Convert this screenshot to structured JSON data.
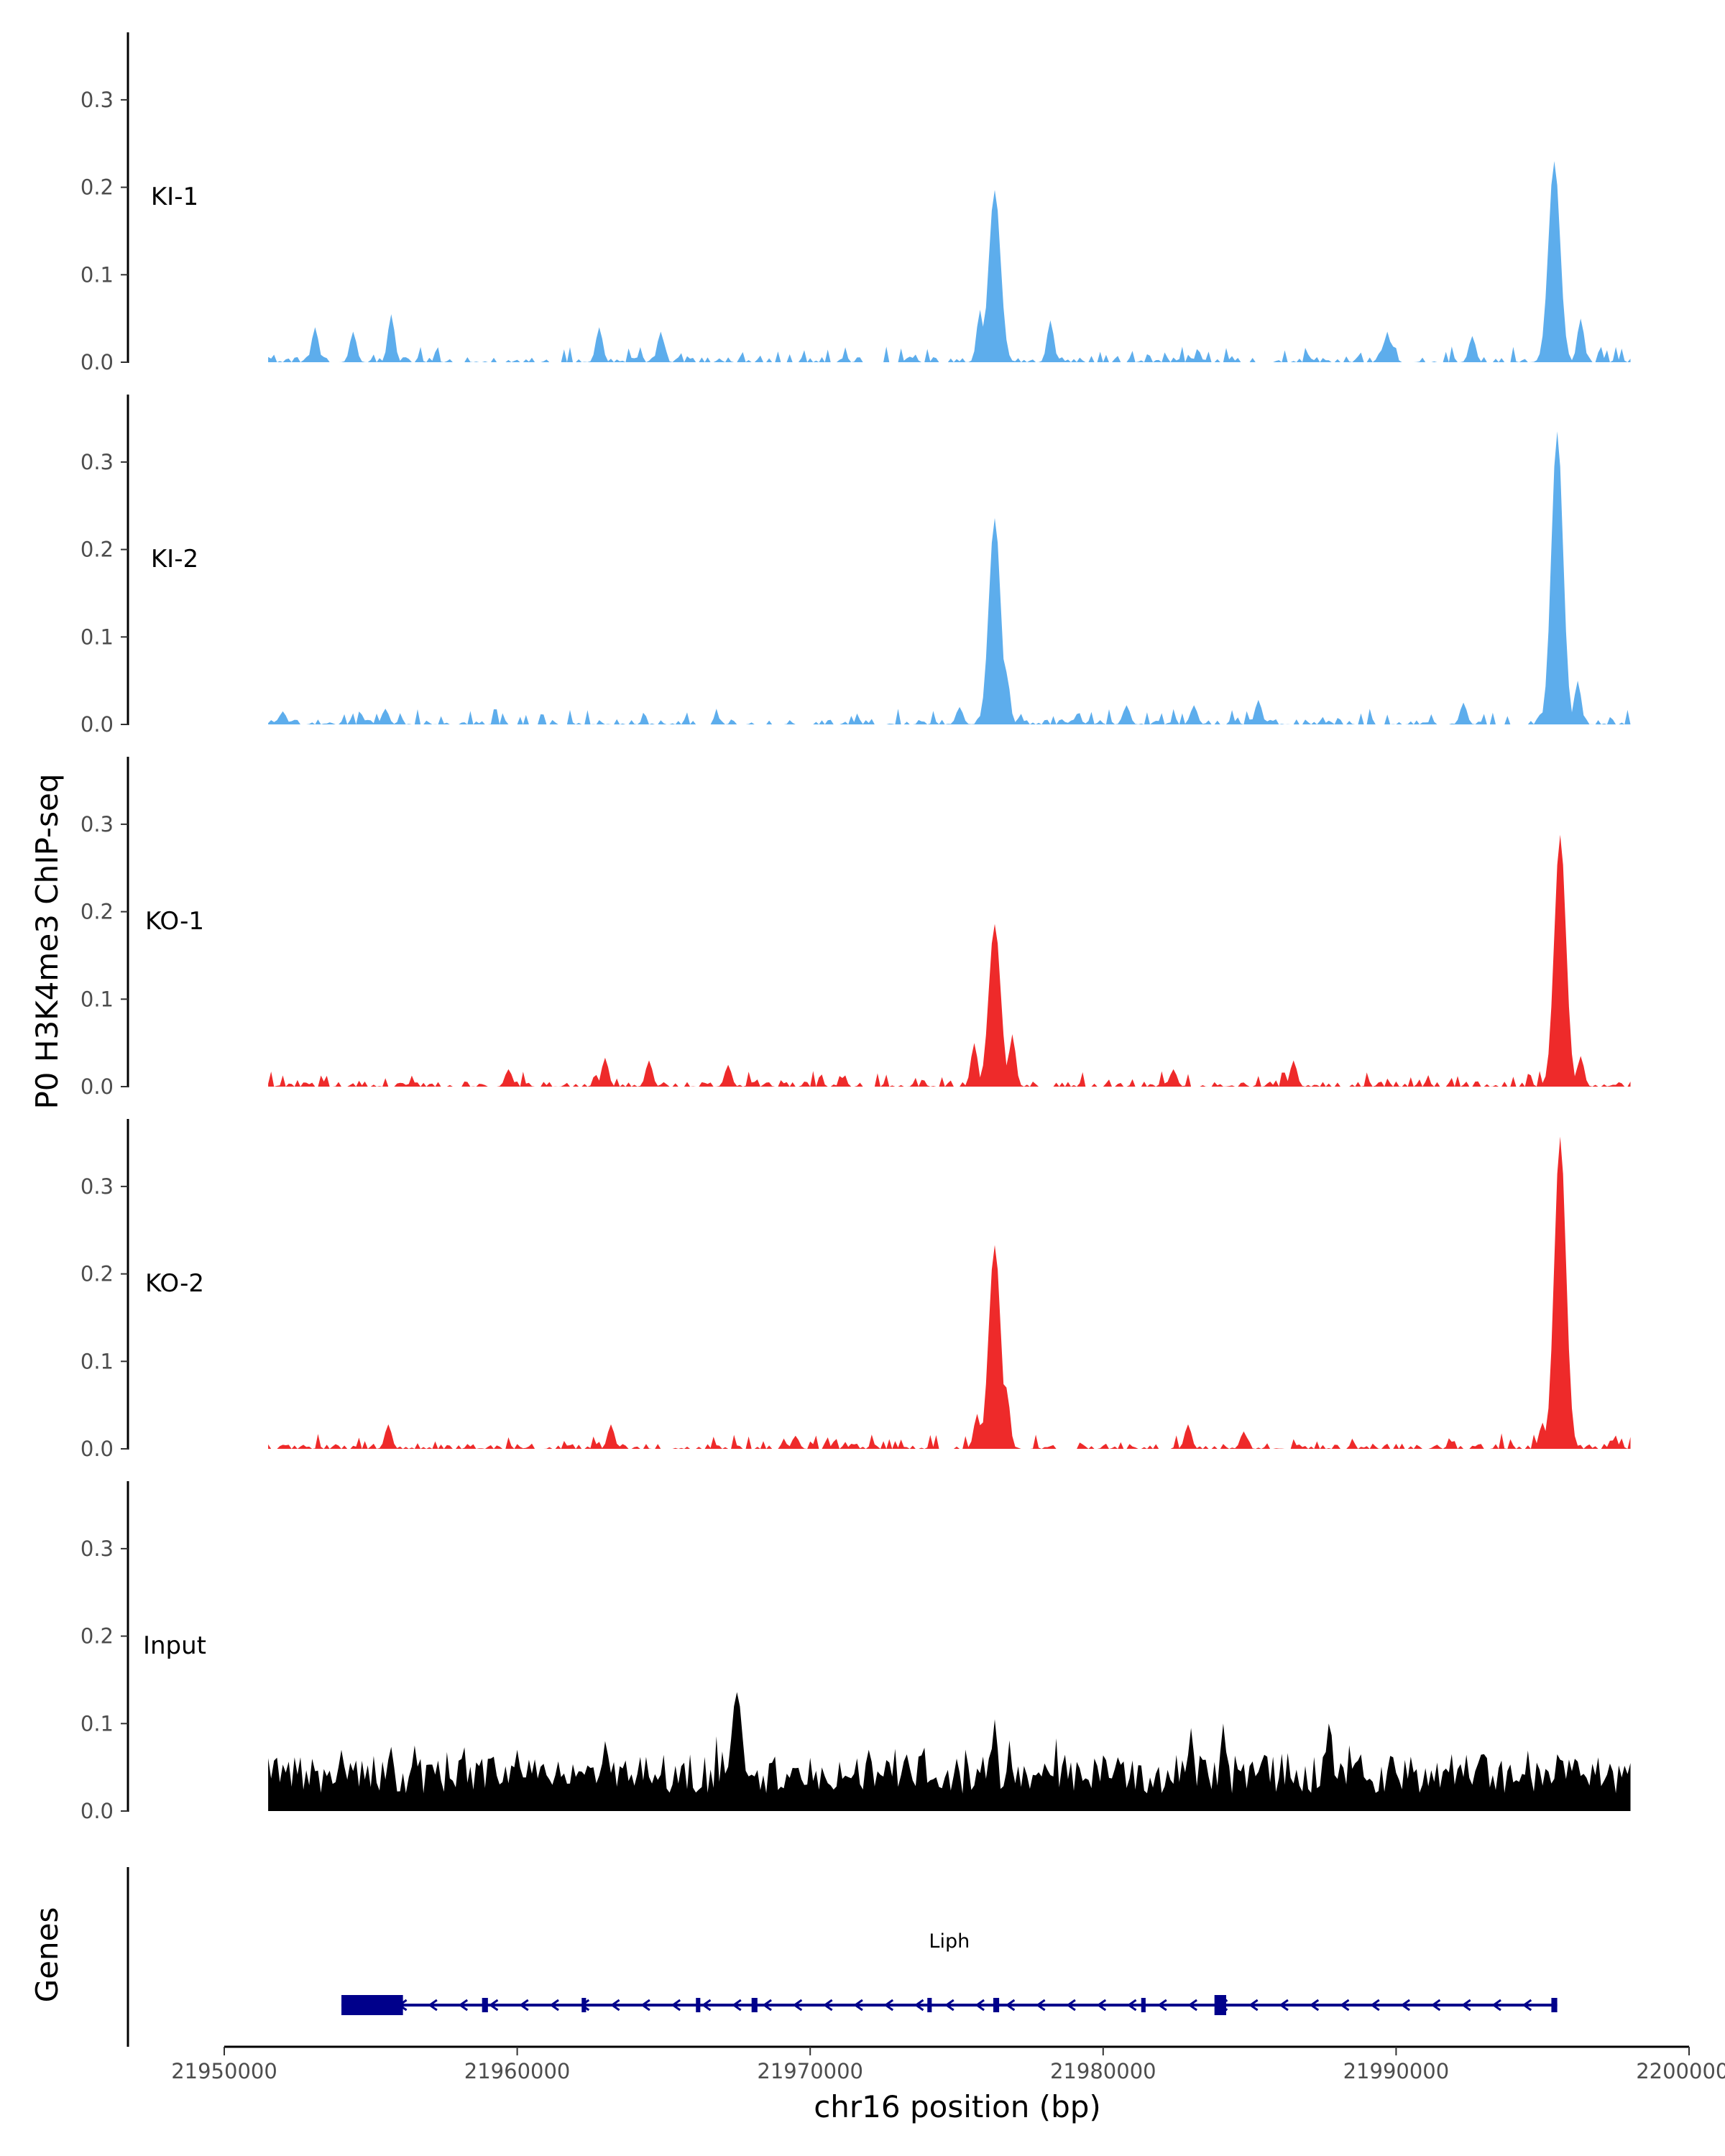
{
  "chart_data": {
    "type": "area",
    "ylabel": "P0 H3K4me3 ChIP-seq",
    "xlabel": "chr16 position (bp)",
    "genes_label": "Genes",
    "xlim": [
      21950000,
      22000000
    ],
    "ylim": [
      0,
      0.38
    ],
    "x_ticks": [
      21950000,
      21960000,
      21970000,
      21980000,
      21990000,
      22000000
    ],
    "x_tick_labels": [
      "21950000",
      "21960000",
      "21970000",
      "21980000",
      "21990000",
      "22000000"
    ],
    "y_ticks": [
      0.0,
      0.1,
      0.2,
      0.3
    ],
    "y_tick_labels": [
      "0.0",
      "0.1",
      "0.2",
      "0.3"
    ],
    "data_range": [
      21951500,
      21998000
    ],
    "grid": false,
    "tracks": [
      {
        "name": "KI-1",
        "color": "#5DADEC",
        "peaks": [
          {
            "x": 21976300,
            "y": 0.197
          },
          {
            "x": 21995400,
            "y": 0.23
          },
          {
            "x": 21975800,
            "y": 0.06
          },
          {
            "x": 21996300,
            "y": 0.05
          },
          {
            "x": 21955700,
            "y": 0.055
          },
          {
            "x": 21954400,
            "y": 0.035
          },
          {
            "x": 21953100,
            "y": 0.04
          },
          {
            "x": 21962800,
            "y": 0.04
          },
          {
            "x": 21964900,
            "y": 0.035
          },
          {
            "x": 21978200,
            "y": 0.048
          },
          {
            "x": 21992600,
            "y": 0.03
          },
          {
            "x": 21989700,
            "y": 0.035
          }
        ]
      },
      {
        "name": "KI-2",
        "color": "#5DADEC",
        "peaks": [
          {
            "x": 21976300,
            "y": 0.236
          },
          {
            "x": 21995500,
            "y": 0.335
          },
          {
            "x": 21976700,
            "y": 0.06
          },
          {
            "x": 21996200,
            "y": 0.05
          },
          {
            "x": 21975100,
            "y": 0.02
          },
          {
            "x": 21955500,
            "y": 0.018
          },
          {
            "x": 21980800,
            "y": 0.022
          },
          {
            "x": 21983100,
            "y": 0.022
          },
          {
            "x": 21985300,
            "y": 0.028
          },
          {
            "x": 21992300,
            "y": 0.025
          },
          {
            "x": 21952000,
            "y": 0.015
          }
        ]
      },
      {
        "name": "KO-1",
        "color": "#EE2A2A",
        "peaks": [
          {
            "x": 21976300,
            "y": 0.186
          },
          {
            "x": 21995600,
            "y": 0.288
          },
          {
            "x": 21975600,
            "y": 0.05
          },
          {
            "x": 21976900,
            "y": 0.06
          },
          {
            "x": 21996300,
            "y": 0.035
          },
          {
            "x": 21963000,
            "y": 0.033
          },
          {
            "x": 21964500,
            "y": 0.03
          },
          {
            "x": 21986500,
            "y": 0.03
          },
          {
            "x": 21982400,
            "y": 0.02
          },
          {
            "x": 21959700,
            "y": 0.02
          },
          {
            "x": 21967200,
            "y": 0.025
          }
        ]
      },
      {
        "name": "KO-2",
        "color": "#EE2A2A",
        "peaks": [
          {
            "x": 21976300,
            "y": 0.233
          },
          {
            "x": 21995600,
            "y": 0.357
          },
          {
            "x": 21976700,
            "y": 0.07
          },
          {
            "x": 21975700,
            "y": 0.04
          },
          {
            "x": 21995000,
            "y": 0.03
          },
          {
            "x": 21955600,
            "y": 0.028
          },
          {
            "x": 21963200,
            "y": 0.028
          },
          {
            "x": 21982900,
            "y": 0.028
          },
          {
            "x": 21984800,
            "y": 0.02
          },
          {
            "x": 21969500,
            "y": 0.015
          }
        ]
      },
      {
        "name": "Input",
        "color": "#000000",
        "peaks": [
          {
            "x": 21967500,
            "y": 0.136
          },
          {
            "x": 21976300,
            "y": 0.105
          },
          {
            "x": 21983000,
            "y": 0.095
          },
          {
            "x": 21984100,
            "y": 0.1
          },
          {
            "x": 21987700,
            "y": 0.1
          },
          {
            "x": 21972000,
            "y": 0.07
          },
          {
            "x": 21960000,
            "y": 0.07
          },
          {
            "x": 21963000,
            "y": 0.08
          },
          {
            "x": 21951500,
            "y": 0.055
          },
          {
            "x": 21954000,
            "y": 0.07
          },
          {
            "x": 21956500,
            "y": 0.075
          },
          {
            "x": 21993000,
            "y": 0.065
          },
          {
            "x": 21998000,
            "y": 0.055
          }
        ]
      }
    ],
    "gene": {
      "name": "Liph",
      "color": "#00008B",
      "start": 21954000,
      "end": 21995500,
      "strand": "-",
      "exons": [
        {
          "start": 21954000,
          "end": 21956100,
          "thick": true
        },
        {
          "start": 21958800,
          "end": 21959000
        },
        {
          "start": 21962200,
          "end": 21962350
        },
        {
          "start": 21966100,
          "end": 21966250
        },
        {
          "start": 21968000,
          "end": 21968200
        },
        {
          "start": 21974000,
          "end": 21974150
        },
        {
          "start": 21976250,
          "end": 21976450
        },
        {
          "start": 21981300,
          "end": 21981450
        },
        {
          "start": 21983800,
          "end": 21984200,
          "thick": true
        },
        {
          "start": 21995300,
          "end": 21995500
        }
      ]
    }
  }
}
